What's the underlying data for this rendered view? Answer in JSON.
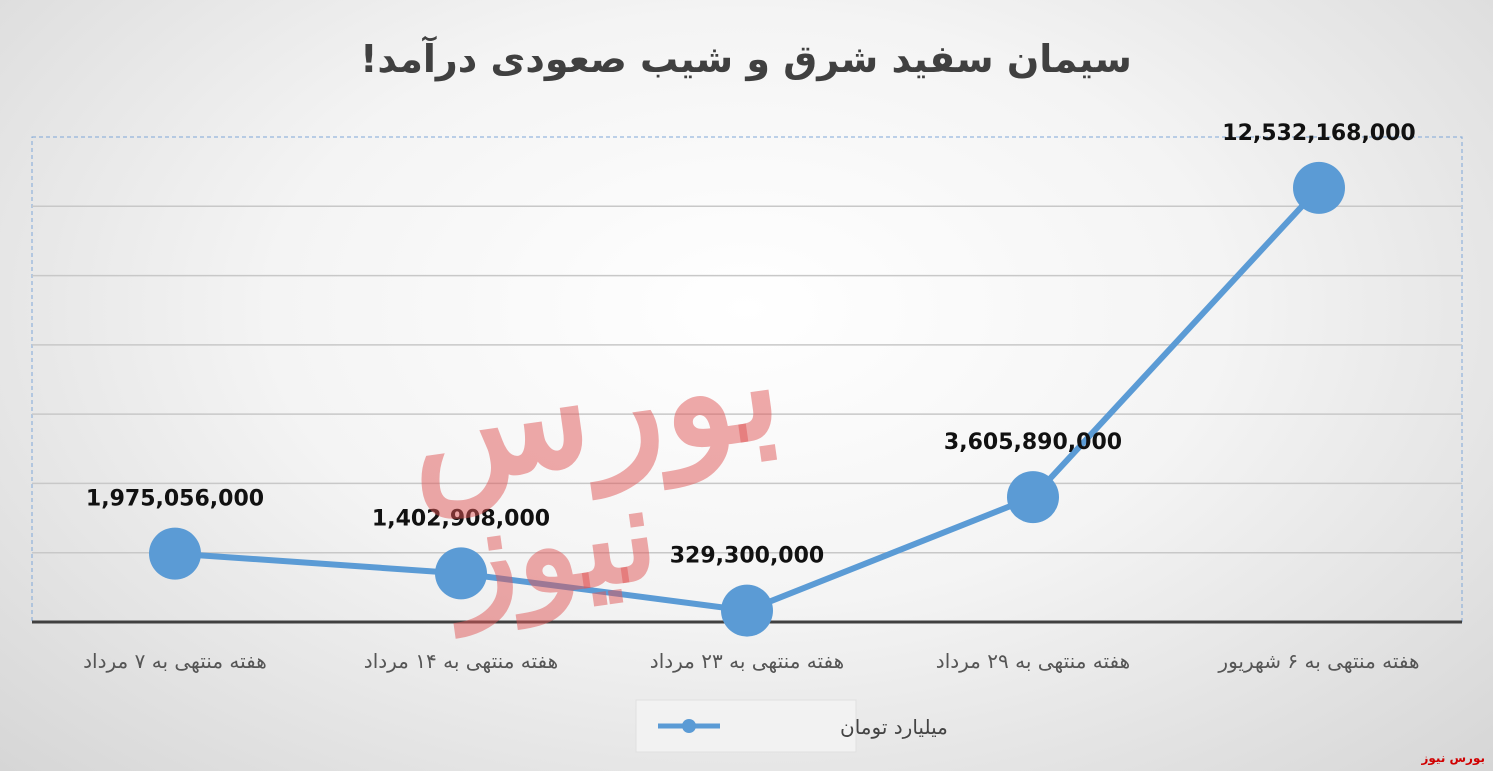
{
  "source_label": "بورس نیوز",
  "watermark_text": "بورس نیوز",
  "chart_data": {
    "type": "line",
    "title": "سیمان سفید شرق و شیب صعودی درآمد!",
    "categories": [
      "هفته منتهی به ۷ مرداد",
      "هفته منتهی به ۱۴ مرداد",
      "هفته منتهی به ۲۳ مرداد",
      "هفته منتهی به ۲۹ مرداد",
      "هفته منتهی به ۶ شهریور"
    ],
    "series": [
      {
        "name": "میلیارد تومان",
        "values": [
          1975056000,
          1402908000,
          329300000,
          3605890000,
          12532168000
        ],
        "labels": [
          "1,975,056,000",
          "1,402,908,000",
          "329,300,000",
          "3,605,890,000",
          "12,532,168,000"
        ],
        "color": "#5b9bd5"
      }
    ],
    "ylim": [
      0,
      14000000000
    ],
    "grid": true,
    "legend_position": "bottom"
  }
}
